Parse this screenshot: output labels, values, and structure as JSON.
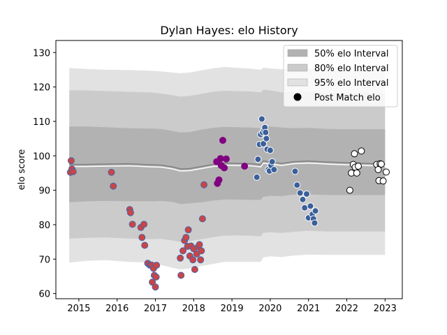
{
  "chart_data": {
    "type": "scatter",
    "title": "Dylan Hayes: elo History",
    "xlabel": "",
    "ylabel": "elo score",
    "xlim": [
      2014.4,
      2023.45
    ],
    "ylim": [
      58.5,
      133.5
    ],
    "x_ticks": [
      2015,
      2016,
      2017,
      2018,
      2019,
      2020,
      2021,
      2022,
      2023
    ],
    "x_tick_labels": [
      "2015",
      "2016",
      "2017",
      "2018",
      "2019",
      "2020",
      "2021",
      "2022",
      "2023"
    ],
    "y_ticks": [
      60,
      70,
      80,
      90,
      100,
      110,
      120,
      130
    ],
    "y_tick_labels": [
      "60",
      "70",
      "80",
      "90",
      "100",
      "110",
      "120",
      "130"
    ],
    "legend_position": "top-right",
    "legend": [
      {
        "label": "50% elo Interval",
        "kind": "patch",
        "color": "#b2b2b2"
      },
      {
        "label": "80% elo Interval",
        "kind": "patch",
        "color": "#cbcbcb"
      },
      {
        "label": "95% elo Interval",
        "kind": "patch",
        "color": "#e2e2e2"
      },
      {
        "label": "Post Match elo",
        "kind": "marker",
        "color": "#000000"
      }
    ],
    "bands": {
      "x": [
        2014.75,
        2015.2,
        2015.7,
        2016.3,
        2016.9,
        2017.15,
        2017.45,
        2017.65,
        2017.9,
        2018.2,
        2018.5,
        2018.8,
        2019.1,
        2019.5,
        2019.75,
        2019.82,
        2020.0,
        2020.3,
        2020.6,
        2021.0,
        2021.5,
        2022.0,
        2022.5,
        2023.0
      ],
      "median": [
        97.5,
        97.5,
        97.6,
        97.7,
        97.4,
        97.3,
        96.8,
        96.2,
        96.3,
        96.9,
        97.5,
        97.9,
        97.8,
        97.7,
        97.4,
        98.5,
        98.2,
        97.8,
        98.3,
        98.5,
        98.2,
        98.0,
        97.8,
        97.6
      ],
      "p50_low": [
        86.5,
        86.8,
        86.9,
        86.8,
        86.8,
        86.9,
        86.6,
        86.0,
        86.2,
        86.5,
        87.0,
        87.3,
        87.3,
        87.2,
        87.2,
        88.1,
        88.4,
        88.3,
        88.7,
        88.8,
        88.6,
        88.6,
        88.6,
        88.6
      ],
      "p50_high": [
        108.5,
        108.5,
        108.3,
        108.0,
        107.9,
        107.8,
        107.2,
        106.8,
        106.9,
        107.6,
        108.1,
        108.4,
        108.3,
        108.2,
        108.0,
        108.6,
        108.5,
        108.2,
        108.0,
        108.1,
        107.8,
        107.7,
        107.7,
        107.7
      ],
      "p80_low": [
        76.0,
        76.2,
        76.3,
        76.0,
        75.8,
        75.9,
        75.4,
        75.0,
        75.2,
        75.8,
        76.4,
        76.8,
        76.9,
        76.8,
        76.6,
        77.6,
        77.8,
        77.6,
        77.9,
        78.2,
        78.0,
        78.0,
        78.0,
        78.0
      ],
      "p80_high": [
        119.0,
        119.0,
        118.8,
        118.6,
        118.4,
        118.1,
        117.6,
        117.2,
        117.4,
        118.0,
        118.6,
        118.9,
        118.8,
        118.7,
        118.4,
        119.2,
        119.0,
        118.4,
        118.6,
        118.6,
        118.3,
        118.2,
        118.2,
        118.2
      ],
      "p95_low": [
        69.0,
        69.5,
        69.7,
        69.2,
        69.0,
        68.3,
        67.5,
        67.0,
        67.3,
        68.0,
        68.6,
        69.2,
        69.2,
        69.2,
        69.2,
        70.5,
        70.8,
        70.6,
        71.0,
        71.3,
        71.2,
        71.2,
        71.2,
        71.2
      ],
      "p95_high": [
        125.5,
        125.2,
        125.0,
        124.9,
        124.7,
        124.5,
        124.2,
        124.0,
        124.2,
        124.8,
        125.4,
        125.8,
        125.6,
        125.3,
        125.0,
        125.6,
        125.4,
        125.1,
        125.2,
        125.3,
        125.0,
        124.9,
        124.9,
        124.9
      ]
    },
    "series": [
      {
        "face_color": "#cc4444",
        "edge_color": "#4466aa",
        "marker_style": "red fill, blue edge",
        "x": [
          2014.78,
          2014.8,
          2014.82,
          2014.85,
          2015.85,
          2015.9,
          2016.33,
          2016.35,
          2016.4,
          2016.62,
          2016.65,
          2016.7,
          2016.72,
          2016.8,
          2016.85,
          2016.88,
          2016.9,
          2016.92,
          2016.95,
          2016.97,
          2017.0,
          2017.02,
          2017.03,
          2017.65,
          2017.67,
          2017.72,
          2017.76,
          2017.8,
          2017.84,
          2017.86,
          2017.9,
          2017.93,
          2017.98,
          2018.0,
          2018.03,
          2018.08,
          2018.12,
          2018.15,
          2018.18,
          2018.2,
          2018.23,
          2018.27
        ],
        "y": [
          95.2,
          98.6,
          96.2,
          95.4,
          95.2,
          91.2,
          84.4,
          83.5,
          80.1,
          79.2,
          76.3,
          80.1,
          74.0,
          68.8,
          68.3,
          68.2,
          68.3,
          63.3,
          67.3,
          65.3,
          61.9,
          64.8,
          68.2,
          70.3,
          65.3,
          72.4,
          75.4,
          76.3,
          73.7,
          78.5,
          70.9,
          73.8,
          69.8,
          73.0,
          67.0,
          71.5,
          73.6,
          74.2,
          69.8,
          72.4,
          81.7,
          91.6
        ]
      },
      {
        "face_color": "#800080",
        "edge_color": "#800080",
        "marker_style": "purple",
        "x": [
          2018.6,
          2018.62,
          2018.66,
          2018.7,
          2018.72,
          2018.76,
          2018.8,
          2018.85,
          2019.33
        ],
        "y": [
          98.3,
          92.0,
          93.0,
          99.2,
          97.2,
          104.5,
          96.5,
          99.1,
          97.0
        ]
      },
      {
        "face_color": "#3a5f9a",
        "edge_color": "#ffffff",
        "marker_style": "blue fill, white edge",
        "x": [
          2019.65,
          2019.68,
          2019.72,
          2019.75,
          2019.78,
          2019.8,
          2019.82,
          2019.84,
          2019.86,
          2019.88,
          2019.9,
          2019.92,
          2019.95,
          2019.98,
          2020.0,
          2020.02,
          2020.05,
          2020.1,
          2020.65,
          2020.7,
          2020.78,
          2020.85,
          2020.9,
          2020.95,
          2021.0,
          2021.05,
          2021.1,
          2021.13,
          2021.16,
          2021.18
        ],
        "y": [
          93.8,
          99.0,
          103.3,
          106.2,
          110.7,
          106.8,
          103.5,
          107.5,
          108.2,
          106.8,
          105.0,
          101.9,
          96.0,
          95.6,
          101.6,
          97.2,
          98.3,
          96.0,
          95.5,
          91.5,
          89.2,
          87.3,
          84.9,
          88.9,
          82.0,
          85.4,
          83.0,
          81.7,
          80.5,
          84.0
        ]
      },
      {
        "face_color": "#ffffff",
        "edge_color": "#000000",
        "marker_style": "white fill, black edge",
        "x": [
          2022.08,
          2022.12,
          2022.17,
          2022.2,
          2022.22,
          2022.26,
          2022.3,
          2022.38,
          2022.78,
          2022.82,
          2022.84,
          2022.87,
          2022.9,
          2022.95,
          2023.03
        ],
        "y": [
          90.0,
          95.0,
          97.5,
          100.6,
          96.7,
          95.0,
          97.0,
          101.4,
          97.5,
          96.0,
          92.8,
          97.7,
          97.6,
          92.7,
          95.3
        ]
      }
    ]
  }
}
